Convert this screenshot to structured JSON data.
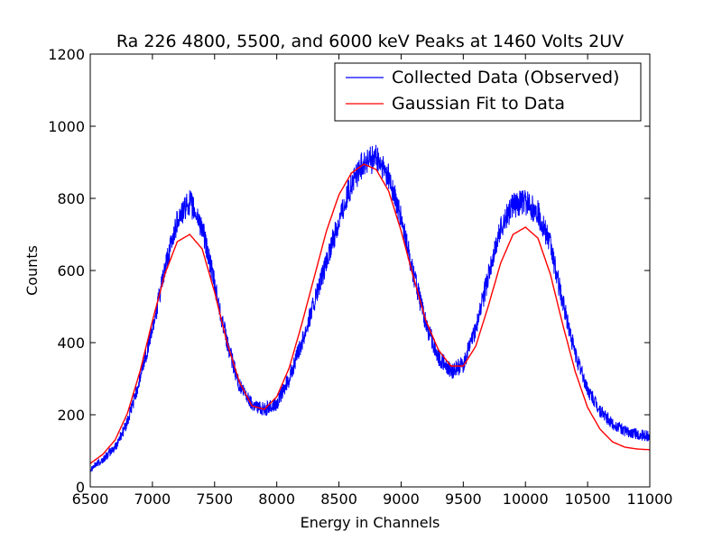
{
  "chart_data": {
    "type": "line",
    "title": "Ra 226 4800, 5500, and 6000 keV Peaks at 1460 Volts 2UV",
    "xlabel": "Energy in Channels",
    "ylabel": "Counts",
    "xlim": [
      6500,
      11000
    ],
    "ylim": [
      0,
      1200
    ],
    "xticks": [
      6500,
      7000,
      7500,
      8000,
      8500,
      9000,
      9500,
      10000,
      10500,
      11000
    ],
    "yticks": [
      0,
      200,
      400,
      600,
      800,
      1000,
      1200
    ],
    "grid": false,
    "legend_position": "top-right",
    "series": [
      {
        "name": "Collected Data (Observed)",
        "color": "#0000ff",
        "x": [
          6500,
          6600,
          6700,
          6800,
          6900,
          7000,
          7100,
          7200,
          7300,
          7400,
          7500,
          7600,
          7700,
          7800,
          7900,
          8000,
          8100,
          8200,
          8300,
          8400,
          8500,
          8600,
          8700,
          8800,
          8900,
          9000,
          9100,
          9200,
          9300,
          9400,
          9500,
          9600,
          9700,
          9800,
          9900,
          10000,
          10100,
          10200,
          10300,
          10400,
          10500,
          10600,
          10700,
          10800,
          10900,
          11000
        ],
        "y": [
          50,
          75,
          110,
          180,
          300,
          440,
          600,
          740,
          790,
          720,
          560,
          400,
          280,
          230,
          215,
          230,
          300,
          400,
          510,
          620,
          740,
          840,
          900,
          910,
          860,
          740,
          590,
          450,
          360,
          320,
          340,
          440,
          580,
          720,
          780,
          790,
          760,
          670,
          510,
          370,
          270,
          210,
          175,
          155,
          145,
          140
        ]
      },
      {
        "name": "Gaussian Fit to Data",
        "color": "#ff0000",
        "x": [
          6500,
          6600,
          6700,
          6800,
          6900,
          7000,
          7100,
          7200,
          7300,
          7400,
          7500,
          7600,
          7700,
          7800,
          7900,
          8000,
          8100,
          8200,
          8300,
          8400,
          8500,
          8600,
          8700,
          8800,
          8900,
          9000,
          9100,
          9200,
          9300,
          9400,
          9500,
          9600,
          9700,
          9800,
          9900,
          10000,
          10100,
          10200,
          10300,
          10400,
          10500,
          10600,
          10700,
          10800,
          10900,
          11000
        ],
        "y": [
          65,
          90,
          130,
          205,
          320,
          460,
          590,
          680,
          700,
          660,
          540,
          400,
          290,
          225,
          215,
          250,
          330,
          450,
          580,
          710,
          810,
          870,
          895,
          880,
          820,
          710,
          580,
          460,
          380,
          335,
          335,
          390,
          500,
          620,
          700,
          720,
          690,
          590,
          450,
          320,
          220,
          160,
          125,
          110,
          105,
          103
        ]
      }
    ]
  }
}
